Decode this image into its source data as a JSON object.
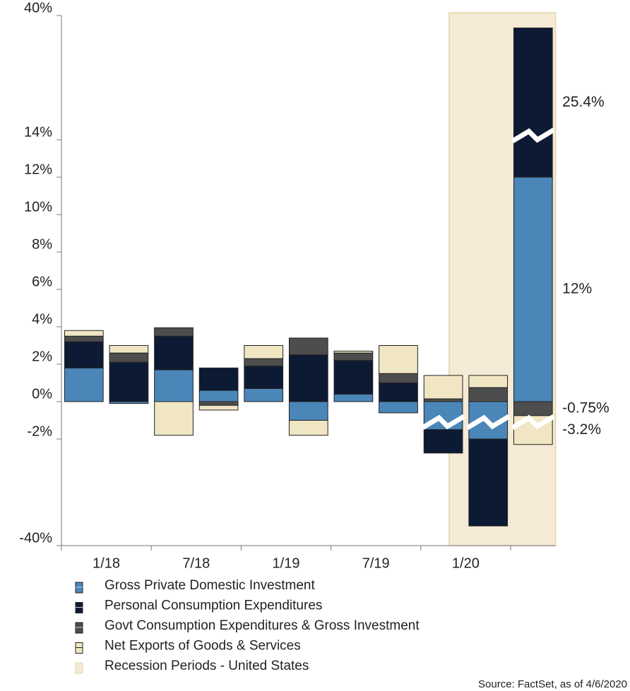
{
  "chart_data": {
    "type": "stacked_bar",
    "categories": [
      "1/18",
      null,
      "7/18",
      null,
      "1/19",
      null,
      "7/19",
      null,
      "1/20",
      null,
      null
    ],
    "series": [
      {
        "name": "Gross Private Domestic Investment",
        "color": "#4a86b8",
        "label_color": "#4a86b8",
        "values": [
          1.8,
          -0.1,
          1.7,
          0.6,
          0.7,
          -1.0,
          0.4,
          -0.6,
          -1.5,
          -2.0,
          12
        ],
        "value_labels": [
          null,
          null,
          null,
          null,
          null,
          null,
          null,
          null,
          null,
          null,
          "12%"
        ]
      },
      {
        "name": "Personal Consumption Expenditures",
        "color": "#0d1a33",
        "label_color": "#0d1a33",
        "values": [
          1.4,
          2.1,
          1.8,
          1.2,
          1.2,
          2.5,
          1.8,
          1.0,
          -5.5,
          -31,
          25.4
        ],
        "value_labels": [
          null,
          null,
          null,
          null,
          null,
          null,
          null,
          null,
          null,
          null,
          "25.4%"
        ]
      },
      {
        "name": "Govt Consumption Expenditures & Gross Investment",
        "color": "#4d4d4d",
        "label_color": "#4d4d4d",
        "values": [
          0.3,
          0.5,
          0.45,
          -0.2,
          0.4,
          0.9,
          0.4,
          0.5,
          0.15,
          0.75,
          -0.75
        ],
        "value_labels": [
          null,
          null,
          null,
          null,
          null,
          null,
          null,
          null,
          null,
          null,
          "-0.75%"
        ]
      },
      {
        "name": "Net Exports of Goods & Services",
        "color": "#f1e6c3",
        "label_color": "#c0962a",
        "values": [
          0.3,
          0.4,
          -1.8,
          -0.25,
          0.7,
          -0.8,
          0.1,
          1.5,
          1.25,
          0.65,
          -3.2
        ],
        "value_labels": [
          null,
          null,
          null,
          null,
          null,
          null,
          null,
          null,
          null,
          null,
          "-3.2%"
        ]
      }
    ],
    "recession": {
      "name": "Recession Periods - United States",
      "color": "#f4ead6",
      "from": 8.63,
      "to": 11
    },
    "ylim": [
      -40,
      40
    ],
    "ybreaks": [
      -2,
      14
    ],
    "yticks": [
      {
        "value": 40,
        "label": "40%"
      },
      {
        "value": 14,
        "label": "14%"
      },
      {
        "value": 12,
        "label": "12%"
      },
      {
        "value": 10,
        "label": "10%"
      },
      {
        "value": 8,
        "label": "8%"
      },
      {
        "value": 6,
        "label": "6%"
      },
      {
        "value": 4,
        "label": "4%"
      },
      {
        "value": 2,
        "label": "2%"
      },
      {
        "value": 0,
        "label": "0%"
      },
      {
        "value": -2,
        "label": "-2%"
      },
      {
        "value": -40,
        "label": "-40%"
      }
    ],
    "source": "Source: FactSet, as of 4/6/2020"
  }
}
